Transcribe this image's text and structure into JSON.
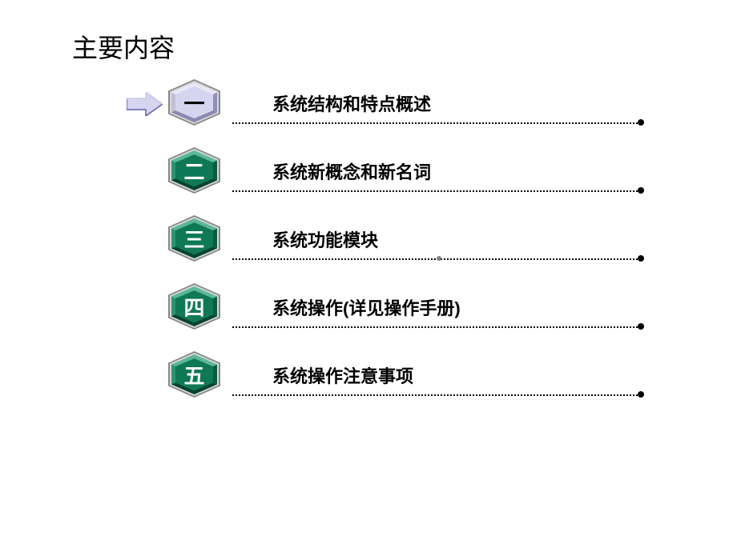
{
  "title": "主要内容",
  "title_color": "#000000",
  "title_fontsize": 32,
  "background_color": "#ffffff",
  "arrow": {
    "fill": "#d5d5f0",
    "stroke": "#6060a0",
    "stroke_width": 1.5,
    "edge_light": "#ffffff"
  },
  "hexagon_highlight": {
    "fill": "#d5d5f0",
    "border_top": "#e8e8f5",
    "border_bottom": "#8888b0",
    "border_left": "#c0c0d8",
    "border_right": "#9090b8",
    "text_color": "#000000",
    "frame_stroke": "#888888"
  },
  "hexagon_normal": {
    "fill": "#0f7856",
    "border_top": "#5ab896",
    "border_bottom": "#064530",
    "border_left": "#2a9670",
    "border_right": "#0a5a3f",
    "text_color": "#ffffff",
    "frame_stroke": "#888888"
  },
  "label_color": "#000000",
  "label_fontsize": 22,
  "line_color": "#000000",
  "line_style": "dotted",
  "items": [
    {
      "number": "一",
      "label": "系统结构和特点概述",
      "highlight": true,
      "mid_dot": false
    },
    {
      "number": "二",
      "label": "系统新概念和新名词",
      "highlight": false,
      "mid_dot": false
    },
    {
      "number": "三",
      "label": "系统功能模块",
      "highlight": false,
      "mid_dot": true
    },
    {
      "number": "四",
      "label": "系统操作(详见操作手册)",
      "highlight": false,
      "mid_dot": false
    },
    {
      "number": "五",
      "label": "系统操作注意事项",
      "highlight": false,
      "mid_dot": false
    }
  ]
}
